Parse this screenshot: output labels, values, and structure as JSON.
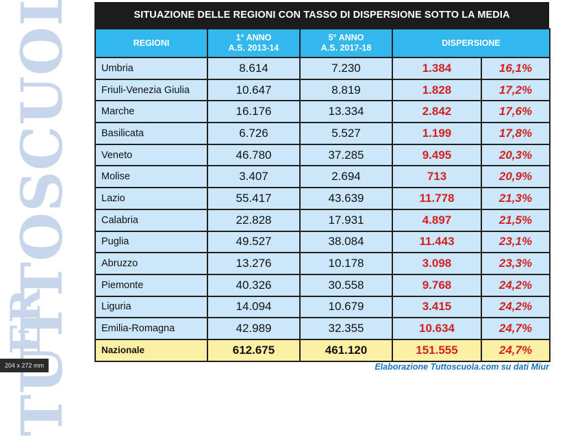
{
  "watermark": {
    "text": "TUTTOSCUOLA",
    "prefix": "ER"
  },
  "size_tag": "204 x 272 mm",
  "title": "SITUAZIONE DELLE REGIONI CON TASSO DI DISPERSIONE SOTTO LA MEDIA",
  "headers": {
    "regioni": "REGIONI",
    "anno1_line1": "1° ANNO",
    "anno1_line2": "A.S. 2013-14",
    "anno5_line1": "5° ANNO",
    "anno5_line2": "A.S. 2017-18",
    "dispersione": "DISPERSIONE"
  },
  "rows": [
    {
      "regione": "Umbria",
      "anno1": "8.614",
      "anno5": "7.230",
      "dispersione": "1.384",
      "percentuale": "16,1%"
    },
    {
      "regione": "Friuli-Venezia Giulia",
      "anno1": "10.647",
      "anno5": "8.819",
      "dispersione": "1.828",
      "percentuale": "17,2%"
    },
    {
      "regione": "Marche",
      "anno1": "16.176",
      "anno5": "13.334",
      "dispersione": "2.842",
      "percentuale": "17,6%"
    },
    {
      "regione": "Basilicata",
      "anno1": "6.726",
      "anno5": "5.527",
      "dispersione": "1.199",
      "percentuale": "17,8%"
    },
    {
      "regione": "Veneto",
      "anno1": "46.780",
      "anno5": "37.285",
      "dispersione": "9.495",
      "percentuale": "20,3%"
    },
    {
      "regione": "Molise",
      "anno1": "3.407",
      "anno5": "2.694",
      "dispersione": "713",
      "percentuale": "20,9%"
    },
    {
      "regione": "Lazio",
      "anno1": "55.417",
      "anno5": "43.639",
      "dispersione": "11.778",
      "percentuale": "21,3%"
    },
    {
      "regione": "Calabria",
      "anno1": "22.828",
      "anno5": "17.931",
      "dispersione": "4.897",
      "percentuale": "21,5%"
    },
    {
      "regione": "Puglia",
      "anno1": "49.527",
      "anno5": "38.084",
      "dispersione": "11.443",
      "percentuale": "23,1%"
    },
    {
      "regione": "Abruzzo",
      "anno1": "13.276",
      "anno5": "10.178",
      "dispersione": "3.098",
      "percentuale": "23,3%"
    },
    {
      "regione": "Piemonte",
      "anno1": "40.326",
      "anno5": "30.558",
      "dispersione": "9.768",
      "percentuale": "24,2%"
    },
    {
      "regione": "Liguria",
      "anno1": "14.094",
      "anno5": "10.679",
      "dispersione": "3.415",
      "percentuale": "24,2%"
    },
    {
      "regione": "Emilia-Romagna",
      "anno1": "42.989",
      "anno5": "32.355",
      "dispersione": "10.634",
      "percentuale": "24,7%"
    }
  ],
  "total": {
    "regione": "Nazionale",
    "anno1": "612.675",
    "anno5": "461.120",
    "dispersione": "151.555",
    "percentuale": "24,7%"
  },
  "source": "Elaborazione Tuttoscuola.com su dati Miur",
  "colors": {
    "title_bg": "#1c1c1c",
    "header_bg": "#33b8ee",
    "row_bg": "#cce6fa",
    "total_bg": "#fbf0a4",
    "accent_red": "#d21f1f",
    "source_blue": "#1a72c2",
    "watermark": "#c8d6ec"
  }
}
